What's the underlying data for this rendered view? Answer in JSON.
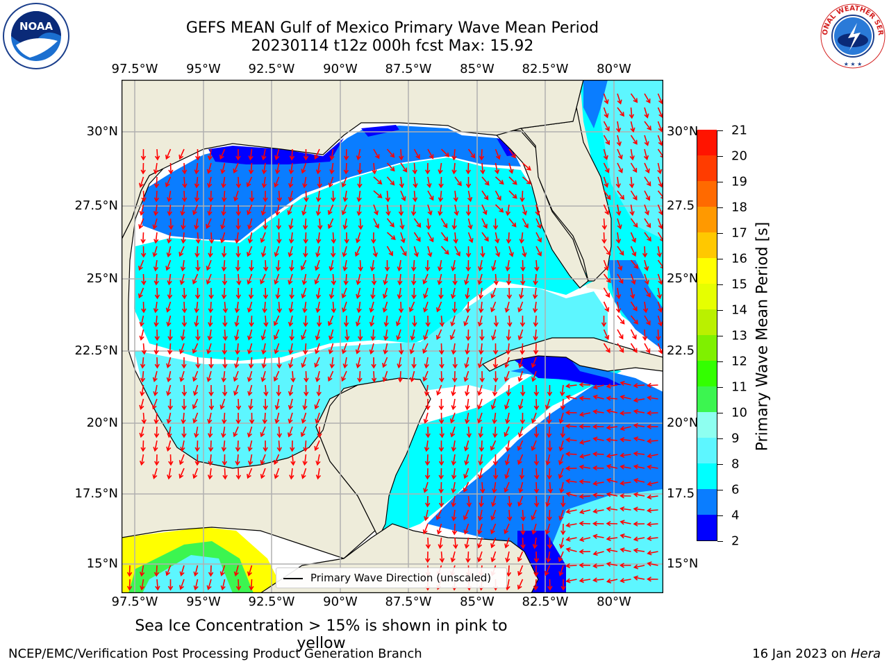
{
  "title": {
    "line1": "GEFS MEAN Gulf of Mexico Primary Wave Mean Period",
    "line2": "20230114 t12z 000h fcst   Max: 15.92"
  },
  "logos": {
    "left": {
      "name": "noaa-logo",
      "text": "NOAA"
    },
    "right": {
      "name": "nws-logo",
      "text": "NATIONAL WEATHER SERVICE"
    }
  },
  "map": {
    "colors": {
      "land": "#eeecda",
      "coast": "#000000",
      "grid": "#b0b0b0",
      "arrow": "#ff0000",
      "ocean_white": "#ffffff"
    },
    "lon_labels": [
      "97.5°W",
      "95°W",
      "92.5°W",
      "90°W",
      "87.5°W",
      "85°W",
      "82.5°W",
      "80°W"
    ],
    "lat_labels_left": [
      "30°N",
      "27.5°N",
      "25°N",
      "22.5°N",
      "20°N",
      "17.5°N",
      "15°N"
    ],
    "lat_labels_right": [
      "30°N",
      "27.5",
      "25°N",
      "22.5",
      "20°N",
      "17.5",
      "15°N"
    ]
  },
  "colorbar": {
    "title": "Primary Wave Mean Period [s]",
    "ticks": [
      "2",
      "4",
      "6",
      "8",
      "9",
      "10",
      "11",
      "12",
      "13",
      "14",
      "15",
      "16",
      "17",
      "18",
      "19",
      "20",
      "21"
    ],
    "colors": [
      "#0000ff",
      "#0a7dff",
      "#00ffff",
      "#5df6ff",
      "#8efff0",
      "#3cf550",
      "#33ff00",
      "#7ff000",
      "#baf000",
      "#e6ff00",
      "#ffff00",
      "#ffc800",
      "#ff9900",
      "#ff6a00",
      "#ff3c00",
      "#ff1400"
    ]
  },
  "legend": {
    "text": "Primary Wave Direction (unscaled)"
  },
  "ice_note": "Sea Ice Concentration > 15% is shown in pink to yellow",
  "footer": {
    "left": "NCEP/EMC/Verification Post Processing Product Generation Branch",
    "right_prefix": "16 Jan 2023 on ",
    "right_host": "Hera"
  }
}
